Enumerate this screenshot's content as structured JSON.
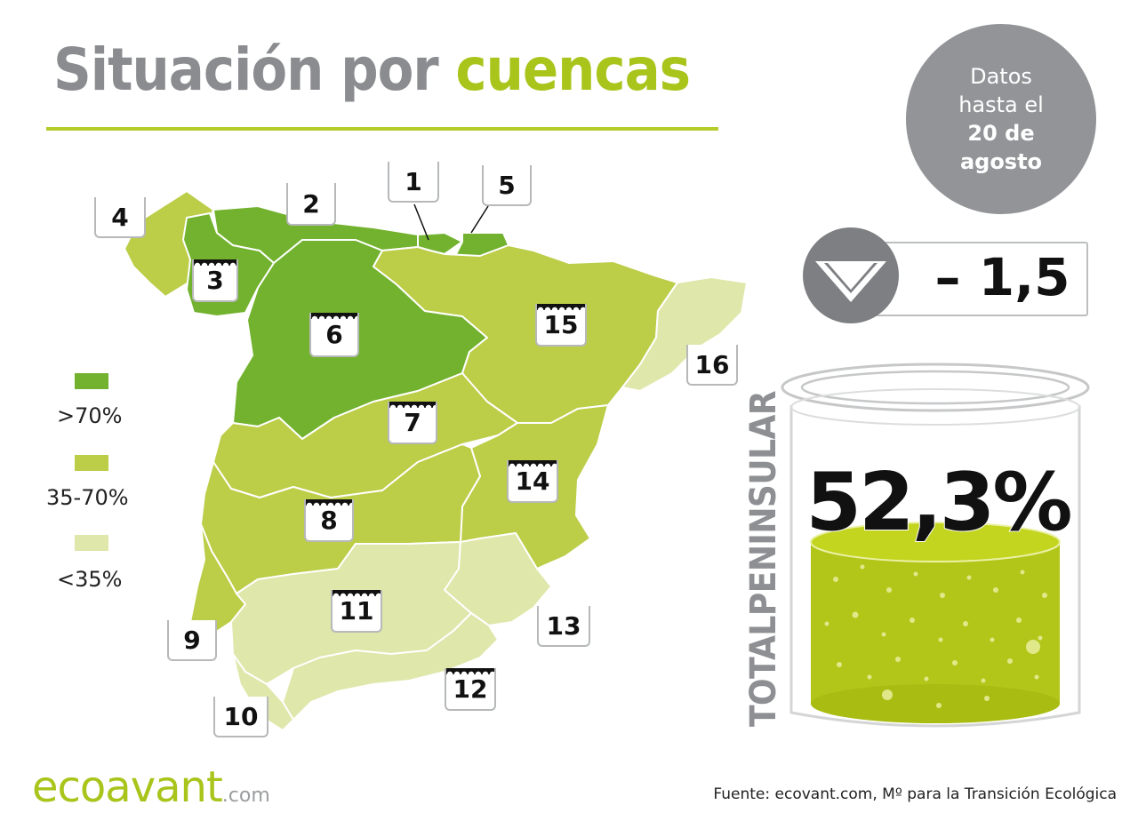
{
  "header": {
    "title_part1": "Situación por",
    "title_part2": "cuencas"
  },
  "date_badge": {
    "line1": "Datos",
    "line2": "hasta el",
    "line3": "20 de",
    "line4": "agosto"
  },
  "weekly_change": {
    "direction": "down",
    "value": "– 1,5"
  },
  "reservoir": {
    "label": "TOTALPENINSULAR",
    "percent_text": "52,3%",
    "fill_fraction": 0.523
  },
  "legend": [
    {
      "label": ">70%",
      "color": "#72b22e"
    },
    {
      "label": "35-70%",
      "color": "#bccd47"
    },
    {
      "label": "<35%",
      "color": "#dfe7aa"
    }
  ],
  "basins": [
    {
      "number": "1",
      "level": "high"
    },
    {
      "number": "2",
      "level": "high"
    },
    {
      "number": "3",
      "level": "high"
    },
    {
      "number": "4",
      "level": "mid"
    },
    {
      "number": "5",
      "level": "high"
    },
    {
      "number": "6",
      "level": "high"
    },
    {
      "number": "7",
      "level": "mid"
    },
    {
      "number": "8",
      "level": "mid"
    },
    {
      "number": "9",
      "level": "mid"
    },
    {
      "number": "10",
      "level": "low"
    },
    {
      "number": "11",
      "level": "low"
    },
    {
      "number": "12",
      "level": "low"
    },
    {
      "number": "13",
      "level": "low"
    },
    {
      "number": "14",
      "level": "mid"
    },
    {
      "number": "15",
      "level": "mid"
    },
    {
      "number": "16",
      "level": "low"
    }
  ],
  "colors": {
    "accent": "#a9c41a",
    "gray": "#8a8c8f",
    "high": "#72b22e",
    "mid": "#bccd47",
    "low": "#dfe7aa"
  },
  "footer": {
    "logo_main": "ecoavant",
    "logo_suffix": ".com",
    "source": "Fuente: ecovant.com, Mº para la Transición Ecológica"
  }
}
